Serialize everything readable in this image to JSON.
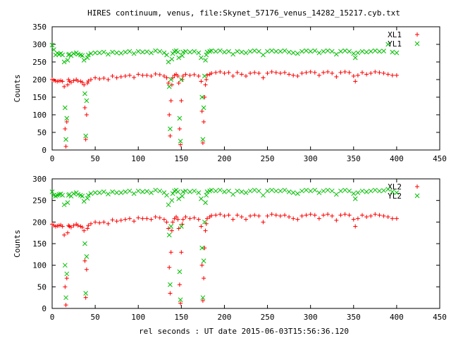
{
  "figure": {
    "title": "HIRES continuum, venus, file:Skynet_57176_venus_14282_15217.cyb.txt",
    "xlabel": "rel seconds : UT date 2015-06-03T15:56:36.120"
  },
  "colors": {
    "red": "#ff0000",
    "green": "#00c000",
    "axis": "#000000"
  },
  "chart_data": [
    {
      "type": "scatter",
      "title": "",
      "xlabel": "",
      "ylabel": "Counts",
      "xlim": [
        0,
        450
      ],
      "ylim": [
        0,
        350
      ],
      "xticks": [
        "0",
        "50",
        "100",
        "150",
        "200",
        "250",
        "300",
        "350",
        "400",
        "450"
      ],
      "yticks": [
        "0",
        "50",
        "100",
        "150",
        "200",
        "250",
        "300",
        "350"
      ],
      "legend_position": "top-right",
      "series": [
        {
          "name": "XL1",
          "marker": "plus",
          "color": "#ff0000",
          "x": [
            0,
            2,
            4,
            6,
            8,
            10,
            12,
            14,
            15,
            16,
            17,
            18,
            19,
            20,
            22,
            25,
            28,
            30,
            33,
            35,
            37,
            38,
            39,
            40,
            41,
            42,
            45,
            50,
            55,
            60,
            65,
            70,
            75,
            80,
            85,
            90,
            95,
            100,
            105,
            110,
            115,
            120,
            125,
            130,
            133,
            135,
            136,
            137,
            138,
            139,
            140,
            142,
            144,
            146,
            147,
            148,
            149,
            150,
            151,
            152,
            155,
            160,
            165,
            170,
            173,
            174,
            175,
            176,
            177,
            178,
            179,
            180,
            183,
            185,
            190,
            195,
            200,
            205,
            210,
            215,
            220,
            225,
            230,
            235,
            240,
            245,
            250,
            255,
            260,
            265,
            270,
            275,
            280,
            285,
            290,
            295,
            300,
            305,
            310,
            315,
            320,
            325,
            330,
            335,
            340,
            345,
            350,
            352,
            355,
            360,
            365,
            370,
            375,
            380,
            385,
            390,
            395,
            400
          ],
          "y": [
            200,
            198,
            196,
            195,
            196,
            197,
            195,
            180,
            60,
            10,
            80,
            185,
            200,
            195,
            192,
            197,
            200,
            196,
            195,
            192,
            185,
            120,
            30,
            100,
            190,
            196,
            200,
            205,
            202,
            204,
            200,
            210,
            205,
            208,
            210,
            212,
            206,
            215,
            212,
            212,
            210,
            216,
            214,
            210,
            205,
            190,
            100,
            40,
            140,
            185,
            205,
            212,
            215,
            210,
            190,
            60,
            15,
            140,
            200,
            210,
            215,
            212,
            214,
            210,
            195,
            110,
            20,
            80,
            150,
            185,
            200,
            212,
            215,
            218,
            220,
            222,
            218,
            220,
            210,
            220,
            215,
            210,
            218,
            220,
            218,
            205,
            218,
            222,
            220,
            218,
            220,
            215,
            212,
            210,
            218,
            220,
            222,
            220,
            212,
            220,
            222,
            218,
            208,
            220,
            222,
            220,
            210,
            195,
            212,
            220,
            215,
            218,
            222,
            220,
            218,
            215,
            212,
            212
          ]
        },
        {
          "name": "YL1",
          "marker": "cross",
          "color": "#00c000",
          "x": [
            0,
            2,
            4,
            6,
            8,
            10,
            12,
            14,
            15,
            16,
            17,
            18,
            19,
            20,
            22,
            25,
            28,
            30,
            33,
            35,
            37,
            38,
            39,
            40,
            41,
            42,
            45,
            50,
            55,
            60,
            65,
            70,
            75,
            80,
            85,
            90,
            95,
            100,
            105,
            110,
            115,
            120,
            125,
            130,
            133,
            135,
            136,
            137,
            138,
            139,
            140,
            142,
            144,
            146,
            147,
            148,
            149,
            150,
            151,
            152,
            155,
            160,
            165,
            170,
            173,
            174,
            175,
            176,
            177,
            178,
            179,
            180,
            183,
            185,
            190,
            195,
            200,
            205,
            210,
            215,
            220,
            225,
            230,
            235,
            240,
            245,
            250,
            255,
            260,
            265,
            270,
            275,
            280,
            285,
            290,
            295,
            300,
            305,
            310,
            315,
            320,
            325,
            330,
            335,
            340,
            345,
            350,
            352,
            355,
            360,
            365,
            370,
            375,
            380,
            385,
            390,
            395,
            400
          ],
          "y": [
            298,
            285,
            270,
            275,
            272,
            274,
            270,
            250,
            120,
            30,
            90,
            255,
            270,
            272,
            268,
            274,
            276,
            272,
            270,
            268,
            255,
            160,
            40,
            140,
            262,
            270,
            274,
            276,
            276,
            278,
            272,
            278,
            276,
            275,
            278,
            280,
            274,
            280,
            278,
            279,
            276,
            282,
            280,
            276,
            270,
            250,
            180,
            60,
            200,
            258,
            274,
            280,
            282,
            278,
            262,
            90,
            25,
            200,
            268,
            278,
            280,
            278,
            280,
            276,
            262,
            150,
            30,
            120,
            210,
            255,
            270,
            278,
            280,
            282,
            280,
            282,
            278,
            280,
            272,
            280,
            278,
            276,
            280,
            282,
            280,
            270,
            280,
            282,
            280,
            280,
            282,
            278,
            276,
            274,
            280,
            282,
            280,
            282,
            276,
            280,
            282,
            280,
            272,
            280,
            282,
            280,
            274,
            262,
            276,
            280,
            278,
            280,
            282,
            280,
            281,
            300,
            278,
            276
          ]
        }
      ]
    },
    {
      "type": "scatter",
      "title": "",
      "xlabel": "",
      "ylabel": "Counts",
      "xlim": [
        0,
        450
      ],
      "ylim": [
        0,
        300
      ],
      "xticks": [
        "0",
        "50",
        "100",
        "150",
        "200",
        "250",
        "300",
        "350",
        "400",
        "450"
      ],
      "yticks": [
        "0",
        "50",
        "100",
        "150",
        "200",
        "250",
        "300"
      ],
      "legend_position": "top-right",
      "series": [
        {
          "name": "XL2",
          "marker": "plus",
          "color": "#ff0000",
          "x": [
            0,
            2,
            4,
            6,
            8,
            10,
            12,
            14,
            15,
            16,
            17,
            18,
            19,
            20,
            22,
            25,
            28,
            30,
            33,
            35,
            37,
            38,
            39,
            40,
            41,
            42,
            45,
            50,
            55,
            60,
            65,
            70,
            75,
            80,
            85,
            90,
            95,
            100,
            105,
            110,
            115,
            120,
            125,
            130,
            133,
            135,
            136,
            137,
            138,
            139,
            140,
            142,
            144,
            146,
            147,
            148,
            149,
            150,
            151,
            152,
            155,
            160,
            165,
            170,
            173,
            174,
            175,
            176,
            177,
            178,
            179,
            180,
            183,
            185,
            190,
            195,
            200,
            205,
            210,
            215,
            220,
            225,
            230,
            235,
            240,
            245,
            250,
            255,
            260,
            265,
            270,
            275,
            280,
            285,
            290,
            295,
            300,
            305,
            310,
            315,
            320,
            325,
            330,
            335,
            340,
            345,
            350,
            352,
            355,
            360,
            365,
            370,
            375,
            380,
            385,
            390,
            395,
            400
          ],
          "y": [
            195,
            192,
            190,
            191,
            192,
            193,
            190,
            170,
            50,
            8,
            70,
            175,
            192,
            190,
            188,
            192,
            195,
            192,
            190,
            188,
            180,
            110,
            25,
            90,
            185,
            192,
            196,
            200,
            198,
            200,
            196,
            205,
            202,
            204,
            206,
            208,
            202,
            210,
            208,
            208,
            206,
            212,
            210,
            206,
            200,
            185,
            95,
            35,
            130,
            180,
            200,
            208,
            212,
            206,
            185,
            55,
            12,
            130,
            195,
            206,
            212,
            208,
            210,
            206,
            190,
            100,
            18,
            70,
            140,
            180,
            196,
            208,
            212,
            215,
            216,
            218,
            214,
            216,
            206,
            216,
            212,
            206,
            214,
            216,
            214,
            200,
            214,
            218,
            216,
            214,
            216,
            212,
            208,
            206,
            214,
            216,
            218,
            216,
            208,
            216,
            218,
            214,
            204,
            216,
            218,
            216,
            206,
            190,
            208,
            216,
            212,
            214,
            218,
            216,
            214,
            212,
            208,
            208
          ]
        },
        {
          "name": "YL2",
          "marker": "cross",
          "color": "#00c000",
          "x": [
            0,
            2,
            4,
            6,
            8,
            10,
            12,
            14,
            15,
            16,
            17,
            18,
            19,
            20,
            22,
            25,
            28,
            30,
            33,
            35,
            37,
            38,
            39,
            40,
            41,
            42,
            45,
            50,
            55,
            60,
            65,
            70,
            75,
            80,
            85,
            90,
            95,
            100,
            105,
            110,
            115,
            120,
            125,
            130,
            133,
            135,
            136,
            137,
            138,
            139,
            140,
            142,
            144,
            146,
            147,
            148,
            149,
            150,
            151,
            152,
            155,
            160,
            165,
            170,
            173,
            174,
            175,
            176,
            177,
            178,
            179,
            180,
            183,
            185,
            190,
            195,
            200,
            205,
            210,
            215,
            220,
            225,
            230,
            235,
            240,
            245,
            250,
            255,
            260,
            265,
            270,
            275,
            280,
            285,
            290,
            295,
            300,
            305,
            310,
            315,
            320,
            325,
            330,
            335,
            340,
            345,
            350,
            352,
            355,
            360,
            365,
            370,
            375,
            380,
            385,
            390,
            395,
            400
          ],
          "y": [
            270,
            262,
            260,
            262,
            264,
            265,
            262,
            240,
            100,
            25,
            80,
            245,
            262,
            264,
            260,
            266,
            268,
            264,
            262,
            260,
            248,
            150,
            35,
            120,
            255,
            262,
            266,
            268,
            268,
            270,
            265,
            270,
            268,
            268,
            270,
            272,
            266,
            272,
            270,
            271,
            268,
            274,
            272,
            268,
            262,
            240,
            170,
            55,
            190,
            250,
            266,
            272,
            274,
            270,
            254,
            85,
            20,
            190,
            260,
            270,
            272,
            270,
            272,
            268,
            254,
            140,
            25,
            110,
            200,
            245,
            262,
            270,
            272,
            274,
            272,
            274,
            270,
            272,
            264,
            272,
            270,
            268,
            272,
            274,
            272,
            262,
            272,
            274,
            272,
            272,
            274,
            270,
            268,
            266,
            272,
            274,
            272,
            274,
            268,
            272,
            274,
            272,
            264,
            272,
            274,
            272,
            266,
            254,
            268,
            272,
            270,
            272,
            274,
            272,
            273,
            276,
            270,
            268
          ]
        }
      ]
    }
  ]
}
